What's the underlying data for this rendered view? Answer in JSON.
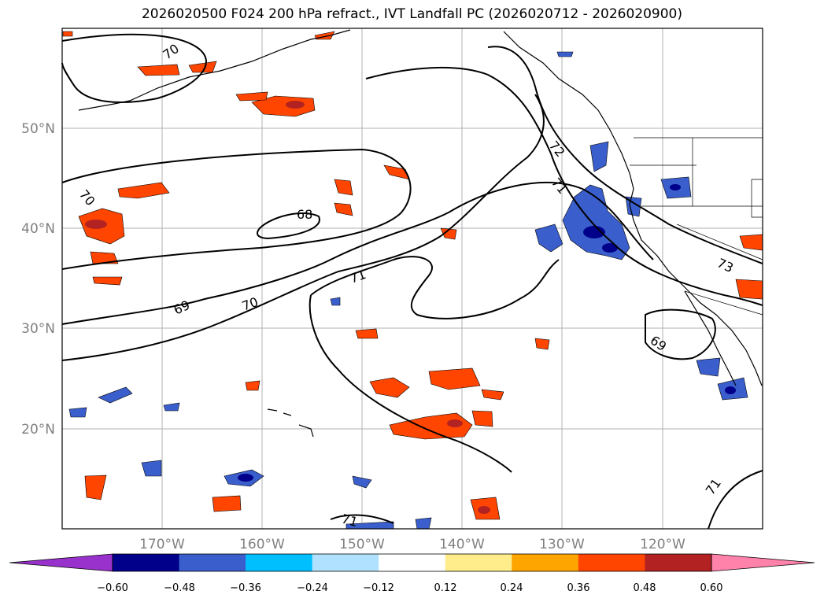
{
  "title": "2026020500 F024 200 hPa refract., IVT Landfall PC (2026020712 - 2026020900)",
  "map": {
    "lon_labels": [
      "170°W",
      "160°W",
      "150°W",
      "140°W",
      "130°W",
      "120°W"
    ],
    "lat_labels": [
      "50°N",
      "40°N",
      "30°N",
      "20°N"
    ],
    "contour_labels": [
      "70",
      "70",
      "68",
      "69",
      "70",
      "71",
      "72",
      "71",
      "69",
      "71",
      "71",
      "73"
    ]
  },
  "colorbar": {
    "tick_labels": [
      "−0.60",
      "−0.48",
      "−0.36",
      "−0.24",
      "−0.12",
      "0.12",
      "0.24",
      "0.36",
      "0.48",
      "0.60"
    ],
    "colors": [
      "#9932cc",
      "#00008b",
      "#3a5fcd",
      "#00bfff",
      "#b0e2ff",
      "#ffffff",
      "#ffec8b",
      "#ffa500",
      "#ff4500",
      "#b22222",
      "#ff82ab"
    ]
  },
  "legend_colors": {
    "coast": "#000000",
    "grid": "#b0b0b0",
    "ticks": "#808080"
  }
}
